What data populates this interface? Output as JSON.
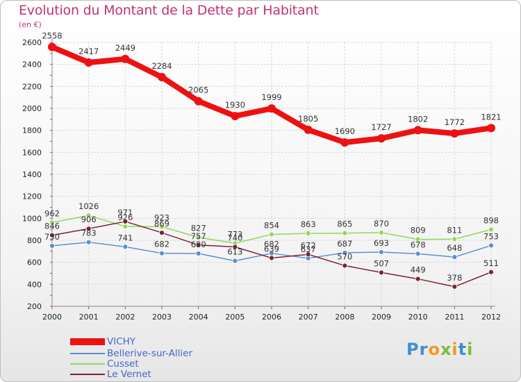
{
  "title": "Evolution du Montant de la Dette par Habitant",
  "unit_label": "(en €)",
  "logo": {
    "letters": [
      "P",
      "r",
      "o",
      "x",
      "i",
      "t",
      "i"
    ],
    "colors": [
      "#3c8fd0",
      "#3c8fd0",
      "#f29a22",
      "#7dbb3a",
      "#f29a22",
      "#3c8fd0",
      "#7dbb3a"
    ]
  },
  "chart_data": {
    "type": "line",
    "title": "Evolution du Montant de la Dette par Habitant",
    "ylabel": "(en €)",
    "xlabel": "",
    "x": [
      "2000",
      "2001",
      "2002",
      "2003",
      "2004",
      "2005",
      "2006",
      "2007",
      "2008",
      "2009",
      "2010",
      "2011",
      "2012"
    ],
    "ylim": [
      200,
      2600
    ],
    "yticks": [
      "200",
      "400",
      "600",
      "800",
      "1000",
      "1200",
      "1400",
      "1600",
      "1800",
      "2000",
      "2200",
      "2400",
      "2600"
    ],
    "grid": true,
    "legend": "bottom-left",
    "series": [
      {
        "name": "VICHY",
        "color": "#ee1111",
        "values": [
          2558,
          2417,
          2449,
          2284,
          2065,
          1930,
          1999,
          1805,
          1690,
          1727,
          1802,
          1772,
          1821
        ],
        "labels": [
          "2558",
          "2417",
          "2449",
          "2284",
          "2065",
          "1930",
          "1999",
          "1805",
          "1690",
          "1727",
          "1802",
          "1772",
          "1821"
        ]
      },
      {
        "name": "Bellerive-sur-Allier",
        "color": "#5b8fd0",
        "values": [
          750,
          783,
          741,
          682,
          680,
          613,
          682,
          637,
          687,
          693,
          678,
          648,
          753
        ],
        "labels": [
          "750",
          "783",
          "741",
          "682",
          "680",
          "613",
          "682",
          "637",
          "687",
          "693",
          "678",
          "648",
          "753"
        ]
      },
      {
        "name": "Cusset",
        "color": "#8fd85c",
        "values": [
          962,
          1026,
          926,
          923,
          827,
          773,
          854,
          863,
          865,
          870,
          809,
          811,
          898
        ],
        "labels": [
          "962",
          "1026",
          "926",
          "923",
          "827",
          "773",
          "854",
          "863",
          "865",
          "870",
          "809",
          "811",
          "898"
        ]
      },
      {
        "name": "Le Vernet",
        "color": "#7a2430",
        "values": [
          846,
          906,
          971,
          869,
          757,
          740,
          639,
          672,
          570,
          507,
          449,
          378,
          511
        ],
        "labels": [
          "846",
          "906",
          "971",
          "869",
          "757",
          "740",
          "639",
          "672",
          "570",
          "507",
          "449",
          "378",
          "511"
        ]
      }
    ]
  }
}
